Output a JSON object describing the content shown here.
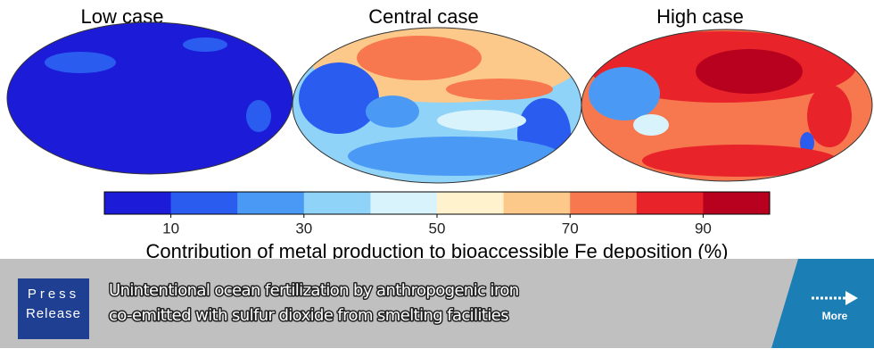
{
  "panels": [
    "Low case",
    "Central case",
    "High case"
  ],
  "colorbar": {
    "colors": [
      "#1c1cd8",
      "#2b5cf0",
      "#4a9af5",
      "#8fd3f8",
      "#d8f3fb",
      "#fff2cc",
      "#fcc98a",
      "#f7774f",
      "#e8242a",
      "#b8001f"
    ],
    "lim": [
      0,
      100
    ],
    "ticks": [
      10,
      30,
      50,
      70,
      90
    ],
    "label": "Contribution of metal production to bioaccessible Fe deposition (%)"
  },
  "banner": {
    "badge": [
      "Press",
      "Release"
    ],
    "title": [
      "Unintentional ocean fertilization by anthropogenic iron",
      "co-emitted with sulfur dioxide from smelting facilities"
    ],
    "button": "More"
  }
}
